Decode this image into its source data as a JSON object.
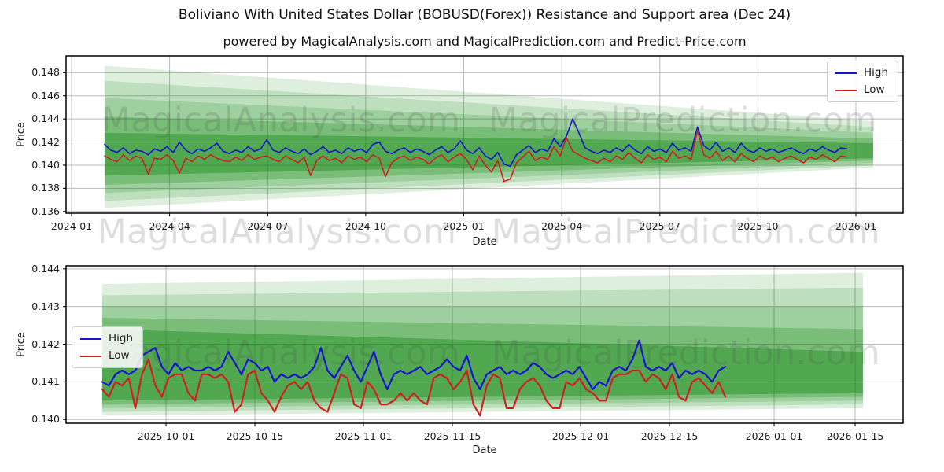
{
  "figure": {
    "title": "Boliviano With United States Dollar (BOBUSD(Forex)) Resistance and Support area (Dec 24)",
    "subtitle": "powered by MagicalAnalysis.com and MagicalPrediction.com and Predict-Price.com",
    "background": "#ffffff"
  },
  "watermarks": {
    "analysis": "MagicalAnalysis.com",
    "prediction": "MagicalPrediction.com",
    "color": "rgba(70,70,70,0.18)"
  },
  "colors": {
    "high": "#1515cf",
    "low": "#cf2020",
    "band_green": "#008000",
    "grid": "#b9b9b9",
    "spine": "#000000",
    "text": "#1a1a1a"
  },
  "chart_data": [
    {
      "type": "line",
      "name": "full-history-with-forecast-bands",
      "xlabel": "Date",
      "ylabel": "Price",
      "xticks": [
        "2024-01",
        "2024-04",
        "2024-07",
        "2024-10",
        "2025-01",
        "2025-04",
        "2025-07",
        "2025-10",
        "2026-01"
      ],
      "yticks": [
        "0.148",
        "0.146",
        "0.144",
        "0.142",
        "0.140",
        "0.138",
        "0.136"
      ],
      "ylim": [
        0.13585,
        0.14945
      ],
      "grid": true,
      "x_start": "2024-02-01",
      "x_end": "2025-12-24",
      "sampling": "approx 6-day intervals",
      "legend": {
        "position": "upper right",
        "entries": [
          "High",
          "Low"
        ]
      },
      "series": [
        {
          "name": "High",
          "color": "#1515cf",
          "values": [
            0.1418,
            0.1413,
            0.1411,
            0.1415,
            0.141,
            0.1413,
            0.1412,
            0.1409,
            0.1414,
            0.1412,
            0.1416,
            0.1411,
            0.142,
            0.1413,
            0.141,
            0.1414,
            0.1412,
            0.1415,
            0.1419,
            0.1412,
            0.141,
            0.1413,
            0.1411,
            0.1416,
            0.1412,
            0.1414,
            0.1422,
            0.1413,
            0.1411,
            0.1415,
            0.1412,
            0.141,
            0.1414,
            0.1409,
            0.1412,
            0.1416,
            0.1411,
            0.1413,
            0.141,
            0.1415,
            0.1412,
            0.1414,
            0.1411,
            0.1418,
            0.142,
            0.1412,
            0.141,
            0.1413,
            0.1415,
            0.1411,
            0.1414,
            0.1412,
            0.1409,
            0.1413,
            0.1416,
            0.1411,
            0.1414,
            0.1421,
            0.1413,
            0.141,
            0.1415,
            0.1408,
            0.1405,
            0.1411,
            0.1401,
            0.1399,
            0.1409,
            0.1413,
            0.1417,
            0.1411,
            0.1414,
            0.1412,
            0.1423,
            0.1416,
            0.1425,
            0.144,
            0.1428,
            0.1415,
            0.1412,
            0.141,
            0.1413,
            0.1411,
            0.1415,
            0.1412,
            0.1418,
            0.1413,
            0.141,
            0.1416,
            0.1412,
            0.1414,
            0.1411,
            0.1419,
            0.1413,
            0.1415,
            0.1412,
            0.1433,
            0.1417,
            0.1413,
            0.142,
            0.1412,
            0.1415,
            0.1411,
            0.1419,
            0.1413,
            0.1411,
            0.1415,
            0.1412,
            0.1414,
            0.1411,
            0.1413,
            0.1415,
            0.1412,
            0.141,
            0.1414,
            0.1412,
            0.1416,
            0.1413,
            0.1411,
            0.1415,
            0.1414
          ]
        },
        {
          "name": "Low",
          "color": "#cf2020",
          "values": [
            0.1408,
            0.1405,
            0.1403,
            0.1409,
            0.1404,
            0.1408,
            0.1406,
            0.1392,
            0.1406,
            0.1405,
            0.1409,
            0.1404,
            0.1393,
            0.1406,
            0.1403,
            0.1408,
            0.1405,
            0.1409,
            0.1406,
            0.1404,
            0.1403,
            0.1407,
            0.1404,
            0.1409,
            0.1405,
            0.1407,
            0.1408,
            0.1405,
            0.1403,
            0.1408,
            0.1405,
            0.1402,
            0.1407,
            0.1391,
            0.1404,
            0.1408,
            0.1404,
            0.1406,
            0.1402,
            0.1408,
            0.1405,
            0.1407,
            0.1403,
            0.1409,
            0.1406,
            0.139,
            0.1402,
            0.1406,
            0.1408,
            0.1404,
            0.1407,
            0.1405,
            0.1401,
            0.1406,
            0.1409,
            0.1403,
            0.1407,
            0.141,
            0.1405,
            0.1396,
            0.1408,
            0.14,
            0.1394,
            0.1404,
            0.1386,
            0.1388,
            0.1402,
            0.1407,
            0.1412,
            0.1404,
            0.1407,
            0.1405,
            0.1416,
            0.1408,
            0.1424,
            0.1412,
            0.1409,
            0.1406,
            0.1404,
            0.1402,
            0.1406,
            0.1403,
            0.1408,
            0.1405,
            0.1411,
            0.1406,
            0.1402,
            0.1409,
            0.1405,
            0.1407,
            0.1403,
            0.1412,
            0.1406,
            0.1408,
            0.1405,
            0.143,
            0.1409,
            0.1406,
            0.1412,
            0.1404,
            0.1408,
            0.1403,
            0.141,
            0.1406,
            0.1403,
            0.1408,
            0.1405,
            0.1407,
            0.1403,
            0.1406,
            0.1408,
            0.1405,
            0.1402,
            0.1407,
            0.1405,
            0.1409,
            0.1406,
            0.1403,
            0.1408,
            0.1407
          ]
        }
      ],
      "support_resistance_bands": [
        {
          "top_left": 0.1486,
          "top_right": 0.1438,
          "bottom_left": 0.1363,
          "bottom_right": 0.1398,
          "alpha": 0.13
        },
        {
          "top_left": 0.1473,
          "top_right": 0.1433,
          "bottom_left": 0.1369,
          "bottom_right": 0.14,
          "alpha": 0.14
        },
        {
          "top_left": 0.1458,
          "top_right": 0.1428,
          "bottom_left": 0.1376,
          "bottom_right": 0.1402,
          "alpha": 0.17
        },
        {
          "top_left": 0.1442,
          "top_right": 0.1423,
          "bottom_left": 0.1383,
          "bottom_right": 0.1404,
          "alpha": 0.23
        },
        {
          "top_left": 0.1428,
          "top_right": 0.1419,
          "bottom_left": 0.1391,
          "bottom_right": 0.1406,
          "alpha": 0.33
        }
      ]
    },
    {
      "type": "line",
      "name": "recent-zoom-with-forecast-bands",
      "xlabel": "Date",
      "ylabel": "Price",
      "xticks": [
        "2025-10-01",
        "2025-10-15",
        "2025-11-01",
        "2025-11-15",
        "2025-12-01",
        "2025-12-15",
        "2026-01-01",
        "2026-01-15"
      ],
      "yticks": [
        "0.144",
        "0.143",
        "0.142",
        "0.141",
        "0.140"
      ],
      "ylim": [
        0.1399,
        0.14408
      ],
      "grid": true,
      "x_start": "2025-09-21",
      "x_end": "2025-12-24",
      "sampling": "daily",
      "legend": {
        "position": "center left",
        "entries": [
          "High",
          "Low"
        ]
      },
      "series": [
        {
          "name": "High",
          "color": "#1515cf",
          "values": [
            0.141,
            0.1409,
            0.1412,
            0.1413,
            0.1412,
            0.1413,
            0.1417,
            0.1418,
            0.1419,
            0.1414,
            0.1412,
            0.1415,
            0.1413,
            0.1414,
            0.1413,
            0.1413,
            0.1414,
            0.1413,
            0.1414,
            0.1418,
            0.1415,
            0.1412,
            0.1416,
            0.1415,
            0.1413,
            0.1414,
            0.141,
            0.1412,
            0.1411,
            0.1412,
            0.1411,
            0.1412,
            0.1414,
            0.1419,
            0.1413,
            0.1411,
            0.1414,
            0.1417,
            0.1413,
            0.141,
            0.1414,
            0.1418,
            0.1412,
            0.1408,
            0.1412,
            0.1413,
            0.1412,
            0.1413,
            0.1414,
            0.1412,
            0.1413,
            0.1414,
            0.1416,
            0.1414,
            0.1413,
            0.1417,
            0.1411,
            0.1408,
            0.1412,
            0.1413,
            0.1414,
            0.1412,
            0.1413,
            0.1412,
            0.1413,
            0.1415,
            0.1414,
            0.1412,
            0.1411,
            0.1412,
            0.1413,
            0.1412,
            0.1414,
            0.1411,
            0.1408,
            0.141,
            0.1409,
            0.1413,
            0.1414,
            0.1413,
            0.1416,
            0.1421,
            0.1414,
            0.1413,
            0.1414,
            0.1413,
            0.1415,
            0.1411,
            0.1413,
            0.1412,
            0.1413,
            0.1412,
            0.141,
            0.1413,
            0.1414
          ]
        },
        {
          "name": "Low",
          "color": "#cf2020",
          "values": [
            0.1408,
            0.1406,
            0.141,
            0.1409,
            0.1411,
            0.1403,
            0.1412,
            0.1416,
            0.1409,
            0.1406,
            0.1411,
            0.1412,
            0.1412,
            0.1407,
            0.1405,
            0.1412,
            0.1412,
            0.1411,
            0.1412,
            0.141,
            0.1402,
            0.1404,
            0.1412,
            0.1413,
            0.1407,
            0.1405,
            0.1402,
            0.1406,
            0.1409,
            0.141,
            0.1408,
            0.141,
            0.1405,
            0.1403,
            0.1402,
            0.1407,
            0.1412,
            0.1411,
            0.1404,
            0.1403,
            0.141,
            0.1408,
            0.1404,
            0.1404,
            0.1405,
            0.1407,
            0.1405,
            0.1407,
            0.1405,
            0.1404,
            0.1411,
            0.1412,
            0.1411,
            0.1408,
            0.141,
            0.1413,
            0.1404,
            0.1401,
            0.1409,
            0.1412,
            0.1411,
            0.1403,
            0.1403,
            0.1408,
            0.141,
            0.1411,
            0.1409,
            0.1405,
            0.1403,
            0.1403,
            0.141,
            0.1409,
            0.1411,
            0.1408,
            0.1407,
            0.1405,
            0.1405,
            0.1411,
            0.1412,
            0.1412,
            0.1413,
            0.1413,
            0.141,
            0.1412,
            0.1411,
            0.1408,
            0.1412,
            0.1406,
            0.1405,
            0.141,
            0.1411,
            0.1409,
            0.1407,
            0.141,
            0.1406
          ]
        }
      ],
      "support_resistance_bands": [
        {
          "top_left": 0.1436,
          "top_right": 0.1439,
          "bottom_left": 0.1401,
          "bottom_right": 0.1403,
          "alpha": 0.13
        },
        {
          "top_left": 0.1433,
          "top_right": 0.1435,
          "bottom_left": 0.1402,
          "bottom_right": 0.1404,
          "alpha": 0.14
        },
        {
          "top_left": 0.143,
          "top_right": 0.143,
          "bottom_left": 0.1403,
          "bottom_right": 0.1405,
          "alpha": 0.17
        },
        {
          "top_left": 0.1427,
          "top_right": 0.1424,
          "bottom_left": 0.1404,
          "bottom_right": 0.1406,
          "alpha": 0.23
        },
        {
          "top_left": 0.1424,
          "top_right": 0.1418,
          "bottom_left": 0.1405,
          "bottom_right": 0.1407,
          "alpha": 0.33
        }
      ]
    }
  ]
}
